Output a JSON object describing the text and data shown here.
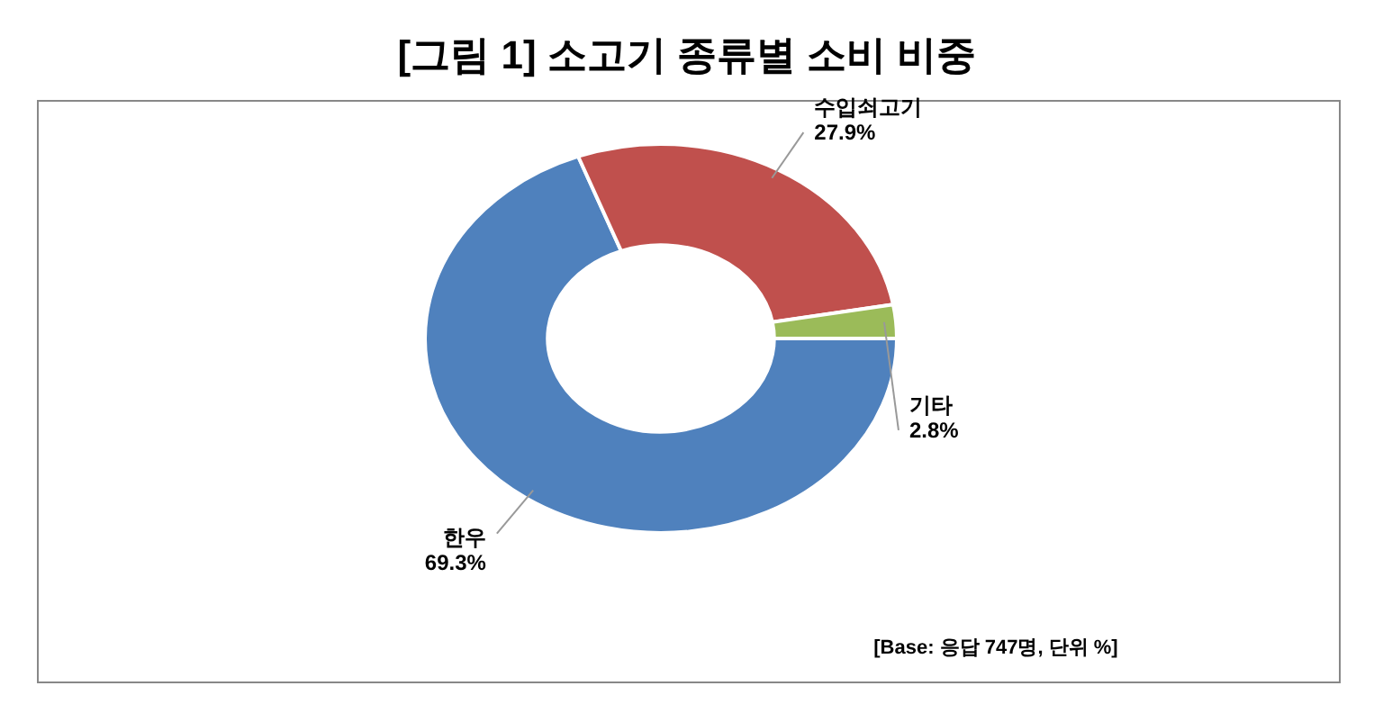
{
  "chart_data": {
    "type": "donut",
    "title": "[그림 1] 소고기 종류별 소비 비중",
    "categories": [
      "한우",
      "수입쇠고기",
      "기타"
    ],
    "values": [
      69.3,
      27.9,
      2.8
    ],
    "colors": [
      "#4f81bd",
      "#c0504d",
      "#9bbb59"
    ],
    "value_labels": [
      "69.3%",
      "27.9%",
      "2.8%"
    ],
    "annotations": [
      "[Base: 응답 747명, 단위 %]"
    ]
  }
}
